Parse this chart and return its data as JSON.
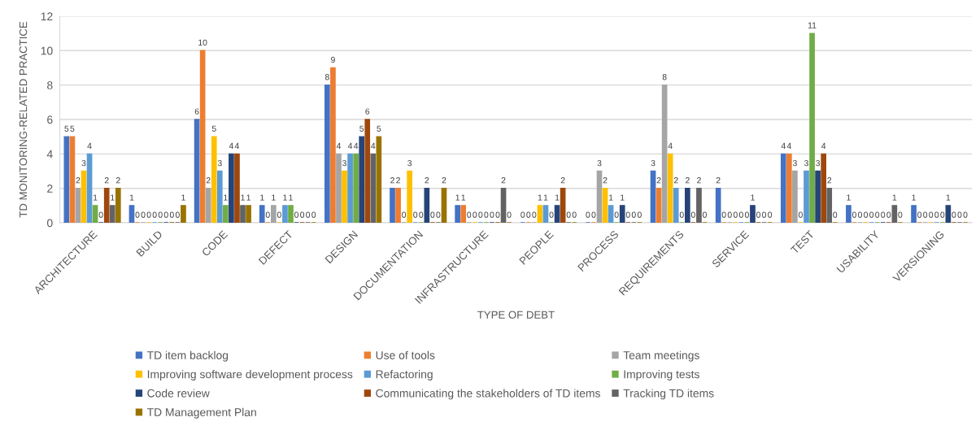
{
  "chart_data": {
    "type": "bar",
    "xlabel": "TYPE OF DEBT",
    "ylabel": "TD MONITORING-RELATED PRACTICE",
    "categories": [
      "ARCHITECTURE",
      "BUILD",
      "CODE",
      "DEFECT",
      "DESIGN",
      "DOCUMENTATION",
      "INFRASTRUCTURE",
      "PEOPLE",
      "PROCESS",
      "REQUIREMENTS",
      "SERVICE",
      "TEST",
      "USABILITY",
      "VERSIONING"
    ],
    "series": [
      {
        "name": "TD item backlog",
        "color": "#4472c4",
        "values": [
          5,
          1,
          6,
          1,
          8,
          2,
          1,
          0,
          0,
          3,
          2,
          4,
          1,
          1
        ]
      },
      {
        "name": "Use of tools",
        "color": "#ed7d31",
        "values": [
          5,
          0,
          10,
          0,
          9,
          2,
          1,
          0,
          0,
          2,
          0,
          4,
          0,
          0
        ]
      },
      {
        "name": "Team meetings",
        "color": "#a5a5a5",
        "values": [
          2,
          0,
          2,
          1,
          4,
          0,
          0,
          0,
          3,
          8,
          0,
          3,
          0,
          0
        ]
      },
      {
        "name": "Improving software development process",
        "color": "#ffc000",
        "values": [
          3,
          0,
          5,
          0,
          3,
          3,
          0,
          1,
          2,
          4,
          0,
          0,
          0,
          0
        ]
      },
      {
        "name": "Refactoring",
        "color": "#5b9bd5",
        "values": [
          4,
          0,
          3,
          1,
          4,
          0,
          0,
          1,
          1,
          2,
          0,
          3,
          0,
          0
        ]
      },
      {
        "name": "Improving tests",
        "color": "#70ad47",
        "values": [
          1,
          0,
          1,
          1,
          4,
          0,
          0,
          0,
          0,
          0,
          0,
          11,
          0,
          0
        ]
      },
      {
        "name": "Code review",
        "color": "#264478",
        "values": [
          0,
          0,
          4,
          0,
          5,
          2,
          0,
          1,
          1,
          2,
          1,
          3,
          0,
          1
        ]
      },
      {
        "name": "Communicating the stakeholders of TD items",
        "color": "#9e480e",
        "values": [
          2,
          0,
          4,
          0,
          6,
          0,
          0,
          2,
          0,
          0,
          0,
          4,
          0,
          0
        ]
      },
      {
        "name": "Tracking TD items",
        "color": "#636363",
        "values": [
          1,
          0,
          1,
          0,
          4,
          0,
          2,
          0,
          0,
          2,
          0,
          2,
          1,
          0
        ]
      },
      {
        "name": "TD Management Plan",
        "color": "#997300",
        "values": [
          2,
          1,
          1,
          0,
          5,
          2,
          0,
          0,
          0,
          0,
          0,
          0,
          0,
          0
        ]
      }
    ],
    "ylim": [
      0,
      12
    ],
    "yticks": [
      0,
      2,
      4,
      6,
      8,
      10,
      12
    ],
    "grid": "y",
    "legend": "bottom",
    "data_labels": true
  }
}
